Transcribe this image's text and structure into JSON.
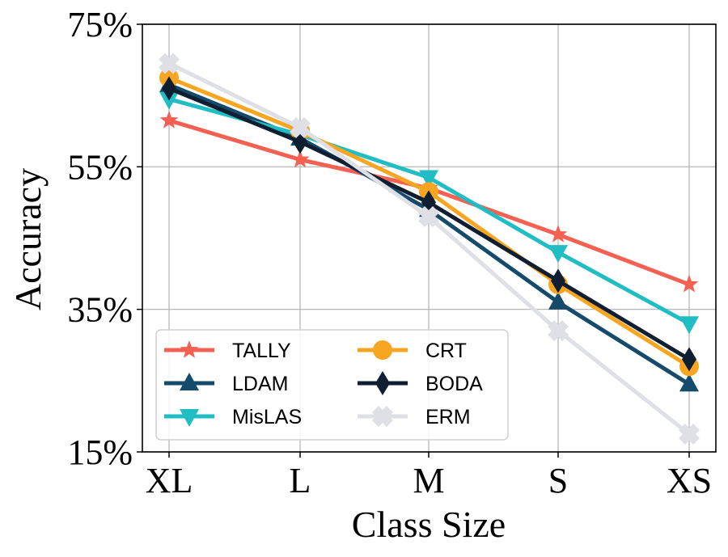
{
  "chart_data": {
    "type": "line",
    "title": "",
    "xlabel": "Class Size",
    "ylabel": "Accuracy",
    "categories": [
      "XL",
      "L",
      "M",
      "S",
      "XS"
    ],
    "ylim": [
      15,
      75
    ],
    "yticks": [
      15,
      35,
      55,
      75
    ],
    "ytick_labels": [
      "15%",
      "35%",
      "55%",
      "75%"
    ],
    "grid": true,
    "legend_position": "bottom-left",
    "legend_columns": 2,
    "series": [
      {
        "name": "TALLY",
        "color": "#F46152",
        "marker": "star",
        "values": [
          61.5,
          56.0,
          52.0,
          45.5,
          38.5
        ]
      },
      {
        "name": "LDAM",
        "color": "#144A6A",
        "marker": "triangle-up",
        "values": [
          66.5,
          59.0,
          49.0,
          36.0,
          24.5
        ]
      },
      {
        "name": "MisLAS",
        "color": "#20BDC4",
        "marker": "triangle-down",
        "values": [
          64.5,
          59.5,
          53.5,
          43.0,
          33.0
        ]
      },
      {
        "name": "CRT",
        "color": "#F8A521",
        "marker": "circle",
        "values": [
          67.5,
          60.0,
          51.5,
          38.5,
          27.0
        ]
      },
      {
        "name": "BODA",
        "color": "#101E31",
        "marker": "diamond",
        "values": [
          66.0,
          58.5,
          50.0,
          39.0,
          28.0
        ]
      },
      {
        "name": "ERM",
        "color": "#DFE0E6",
        "marker": "x",
        "values": [
          69.5,
          60.5,
          48.0,
          32.0,
          17.5
        ]
      }
    ]
  }
}
